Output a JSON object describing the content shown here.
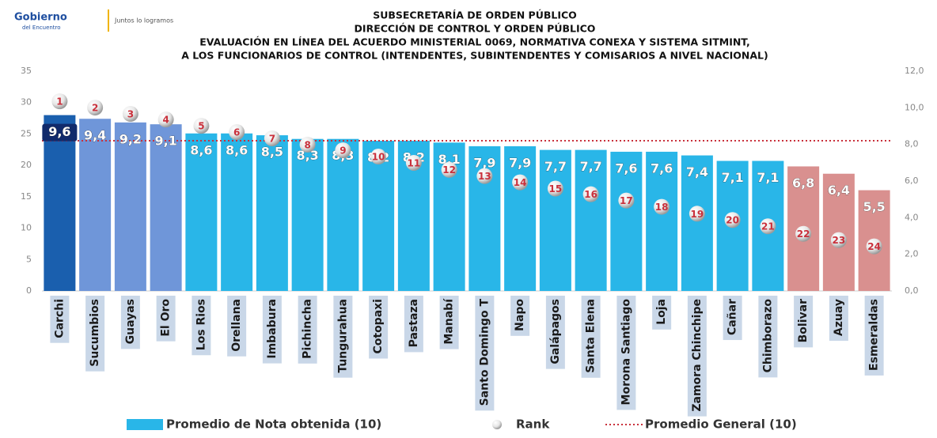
{
  "header": {
    "logo": "Gobierno",
    "logo_sub": "del Encuentro",
    "slogan": "Juntos lo logramos"
  },
  "chart_data": {
    "type": "bar",
    "title": [
      "SUBSECRETARÍA DE ORDEN PÚBLICO",
      "DIRECCIÓN DE CONTROL Y ORDEN PÚBLICO",
      "EVALUACIÓN EN LÍNEA DEL ACUERDO MINISTERIAL 0069, NORMATIVA CONEXA Y SISTEMA SITMINT,",
      "A LOS FUNCIONARIOS DE CONTROL (INTENDENTES, SUBINTENDENTES  Y COMISARIOS A NIVEL NACIONAL)"
    ],
    "categories": [
      "Carchi",
      "Sucumbios",
      "Guayas",
      "El Oro",
      "Los Rios",
      "Orellana",
      "Imbabura",
      "Pichincha",
      "Tungurahua",
      "Cotopaxi",
      "Pastaza",
      "Manabí",
      "Santo Domingo T",
      "Napo",
      "Galápagos",
      "Santa Elena",
      "Morona Santiago",
      "Loja",
      "Zamora Chinchipe",
      "Cañar",
      "Chimborazo",
      "Bolivar",
      "Azuay",
      "Esmeraldas"
    ],
    "series": [
      {
        "name": "Promedio de Nota obtenida (10)",
        "axis": "y2",
        "color": "#29b6e8",
        "colors": [
          "#1a5fae",
          "#6f96d9",
          "#6f96d9",
          "#6f96d9",
          "#29b6e8",
          "#29b6e8",
          "#29b6e8",
          "#29b6e8",
          "#29b6e8",
          "#29b6e8",
          "#29b6e8",
          "#29b6e8",
          "#29b6e8",
          "#29b6e8",
          "#29b6e8",
          "#29b6e8",
          "#29b6e8",
          "#29b6e8",
          "#29b6e8",
          "#29b6e8",
          "#29b6e8",
          "#d9908f",
          "#d9908f",
          "#d9908f"
        ],
        "values": [
          9.6,
          9.4,
          9.2,
          9.1,
          8.6,
          8.6,
          8.5,
          8.3,
          8.3,
          8.2,
          8.2,
          8.1,
          7.9,
          7.9,
          7.7,
          7.7,
          7.6,
          7.6,
          7.4,
          7.1,
          7.1,
          6.8,
          6.4,
          5.5
        ],
        "value_labels": [
          "9,6",
          "9,4",
          "9,2",
          "9,1",
          "8,6",
          "8,6",
          "8,5",
          "8,3",
          "8,3",
          "8,2",
          "8,2",
          "8,1",
          "7,9",
          "7,9",
          "7,7",
          "7,7",
          "7,6",
          "7,6",
          "7,4",
          "7,1",
          "7,1",
          "6,8",
          "6,4",
          "5,5"
        ]
      },
      {
        "name": "Rank",
        "color": "#c9303b",
        "values": [
          30.2,
          29.2,
          28.2,
          27.3,
          26.3,
          25.3,
          24.3,
          23.3,
          22.4,
          21.4,
          20.4,
          19.3,
          18.3,
          17.3,
          16.3,
          15.4,
          14.4,
          13.4,
          12.3,
          11.3,
          10.3,
          9.1,
          8.1,
          7.1
        ],
        "ranks": [
          1,
          2,
          3,
          4,
          5,
          6,
          7,
          8,
          9,
          10,
          11,
          12,
          13,
          14,
          15,
          16,
          17,
          18,
          19,
          20,
          21,
          22,
          23,
          24
        ]
      }
    ],
    "reference_line": {
      "name": "Promedio General (10)",
      "axis": "y2",
      "value": 8.2,
      "color": "#c9303b"
    },
    "ylim": [
      0,
      35
    ],
    "yticks": [
      0,
      5,
      10,
      15,
      20,
      25,
      30,
      35
    ],
    "y2lim": [
      0,
      12
    ],
    "y2ticks": [
      {
        "value": 0,
        "label": "0,0"
      },
      {
        "value": 2,
        "label": "2,0"
      },
      {
        "value": 4,
        "label": "4,0"
      },
      {
        "value": 6,
        "label": "6,0"
      },
      {
        "value": 8,
        "label": "8,0"
      },
      {
        "value": 10,
        "label": "10,0"
      },
      {
        "value": 12,
        "label": "12,0"
      }
    ],
    "legend": "bottom"
  }
}
